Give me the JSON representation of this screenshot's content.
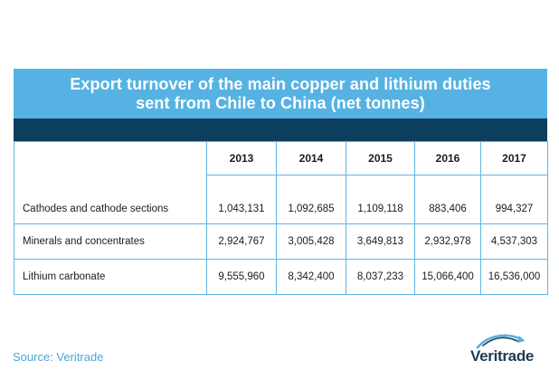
{
  "title_line1": "Export turnover of the main copper and lithium duties",
  "title_line2": "sent from Chile to China (net tonnes)",
  "source": "Source: Veritrade",
  "logo_text": "Veritrade",
  "colors": {
    "title_bar": "#56b2e2",
    "dark_bar": "#0d3e5e",
    "border": "#5fb6e4",
    "source": "#4aa6d8"
  },
  "chart_data": {
    "type": "table",
    "title": "Export turnover of the main copper and lithium duties sent from Chile to China (net tonnes)",
    "columns": [
      "2013",
      "2014",
      "2015",
      "2016",
      "2017"
    ],
    "rows": [
      {
        "label": "Cathodes and cathode sections",
        "values": [
          "1,043,131",
          "1,092,685",
          "1,109,118",
          "883,406",
          "994,327"
        ]
      },
      {
        "label": "Minerals and concentrates",
        "values": [
          "2,924,767",
          "3,005,428",
          "3,649,813",
          "2,932,978",
          "4,537,303"
        ]
      },
      {
        "label": "Lithium carbonate",
        "values": [
          "9,555,960",
          "8,342,400",
          "8,037,233",
          "15,066,400",
          "16,536,000"
        ]
      }
    ]
  }
}
